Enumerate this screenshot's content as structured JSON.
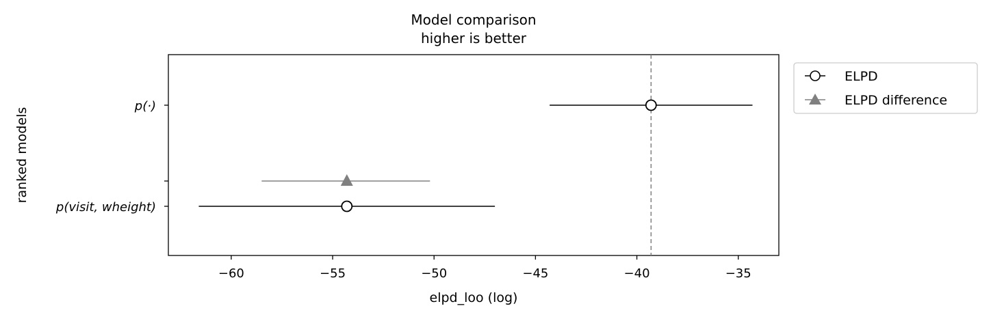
{
  "chart_data": {
    "type": "scatter",
    "title": "Model comparison",
    "subtitle": "higher is better",
    "xlabel": "elpd_loo (log)",
    "ylabel": "ranked models",
    "xlim": [
      -63.1,
      -33.0
    ],
    "xticks": [
      -60,
      -55,
      -50,
      -45,
      -40,
      -35
    ],
    "xtick_labels": [
      "−60",
      "−55",
      "−50",
      "−45",
      "−40",
      "−35"
    ],
    "models": [
      "p(·)",
      "p(visit, wheight)"
    ],
    "series": [
      {
        "name": "ELPD",
        "marker": "open-circle",
        "color": "#000000",
        "points": [
          {
            "model": "p(·)",
            "elpd": -39.3,
            "low": -44.3,
            "high": -34.3
          },
          {
            "model": "p(visit, wheight)",
            "elpd": -54.3,
            "low": -61.6,
            "high": -47.0
          }
        ]
      },
      {
        "name": "ELPD difference",
        "marker": "triangle",
        "color": "#808080",
        "points": [
          {
            "model": "p(visit, wheight)",
            "elpd": -54.3,
            "low": -58.5,
            "high": -50.2
          }
        ]
      }
    ],
    "reference_line": {
      "x": -39.3,
      "style": "dashed",
      "color": "#808080"
    },
    "legend_position": "outside-right",
    "grid": false
  }
}
